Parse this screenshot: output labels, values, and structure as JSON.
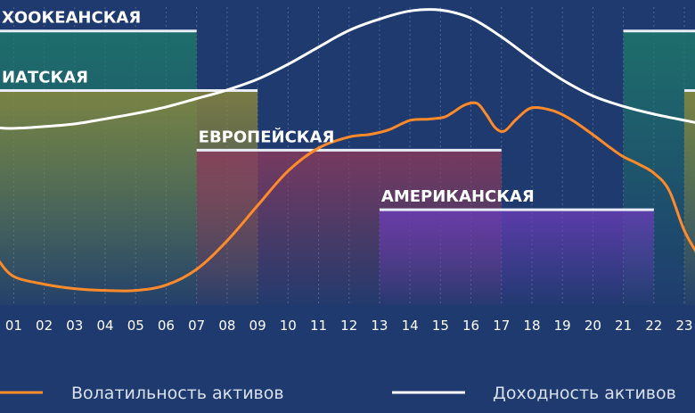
{
  "chart_data": {
    "type": "line",
    "x_ticks": [
      "01",
      "02",
      "03",
      "04",
      "05",
      "06",
      "07",
      "08",
      "09",
      "10",
      "11",
      "12",
      "13",
      "14",
      "15",
      "16",
      "17",
      "18",
      "19",
      "20",
      "21",
      "22",
      "23"
    ],
    "xlim": [
      0.55,
      23.35
    ],
    "ylim": [
      0,
      100
    ],
    "grid": "vertical",
    "sessions": [
      {
        "name": "ТИХООКЕАНСКАЯ",
        "label": "ХООКЕАНСКАЯ",
        "start": 0,
        "end": 7,
        "level": 92,
        "color": "#1d7a6a",
        "label_x": 0
      },
      {
        "name": "ТИХООКЕАНСКАЯ",
        "label": "",
        "start": 21,
        "end": 25,
        "level": 92,
        "color": "#1d7a6a",
        "label_x": 21
      },
      {
        "name": "АЗИАТСКАЯ",
        "label": "ИАТСКАЯ",
        "start": 0,
        "end": 9,
        "level": 72,
        "color": "#8f8a3a",
        "label_x": 0
      },
      {
        "name": "АЗИАТСКАЯ",
        "label": "",
        "start": 23,
        "end": 25,
        "level": 72,
        "color": "#8f8a3a",
        "label_x": 23
      },
      {
        "name": "ЕВРОПЕЙСКАЯ",
        "label": "ЕВРОПЕЙСКАЯ",
        "start": 7,
        "end": 17,
        "level": 52,
        "color": "#8c3a5c",
        "label_x": 7
      },
      {
        "name": "АМЕРИКАНСКАЯ",
        "label": "АМЕРИКАНСКАЯ",
        "start": 13,
        "end": 22,
        "level": 32,
        "color": "#6a3cb8",
        "label_x": 13
      }
    ],
    "series": [
      {
        "name": "Доходность активов",
        "color": "#ffffff",
        "x": [
          0.5,
          1,
          2,
          3,
          4,
          5,
          6,
          7,
          8,
          9,
          10,
          11,
          12,
          13,
          14,
          15,
          16,
          17,
          18,
          19,
          20,
          21,
          22,
          23.5
        ],
        "y": [
          59.5,
          59.3,
          59.9,
          60.8,
          62.5,
          64.3,
          66.5,
          69.3,
          72.2,
          75.8,
          80.8,
          86.6,
          92.2,
          96.0,
          98.7,
          99.0,
          96.3,
          90.0,
          82.5,
          75.6,
          70.2,
          66.7,
          64.1,
          61.0
        ]
      },
      {
        "name": "Волатильность активов",
        "color": "#ff8a2a",
        "x": [
          0.5,
          1,
          2,
          3,
          4,
          5,
          6,
          7,
          8,
          9,
          10,
          11,
          12,
          12.7,
          13.3,
          14,
          14.6,
          15.1,
          15.4,
          15.8,
          16.2,
          16.5,
          16.8,
          17.1,
          17.5,
          18,
          18.7,
          19.3,
          20,
          20.6,
          21,
          21.5,
          22,
          22.5,
          23,
          23.5
        ],
        "y": [
          15,
          9.6,
          7.0,
          5.5,
          4.9,
          4.9,
          6.7,
          12.0,
          21.6,
          33.4,
          45.0,
          52.7,
          56.4,
          57.3,
          58.8,
          62.0,
          62.4,
          63.0,
          64.6,
          67.2,
          67.7,
          64.0,
          59.5,
          58.4,
          62.5,
          66.2,
          65.2,
          62.2,
          57.2,
          52.6,
          49.8,
          47.3,
          44.3,
          38.5,
          25.0,
          16.0
        ]
      }
    ]
  },
  "legend": {
    "items": [
      {
        "label": "Волатильность активов",
        "color": "#ff8a2a"
      },
      {
        "label": "Доходность активов",
        "color": "#ffffff"
      }
    ]
  }
}
